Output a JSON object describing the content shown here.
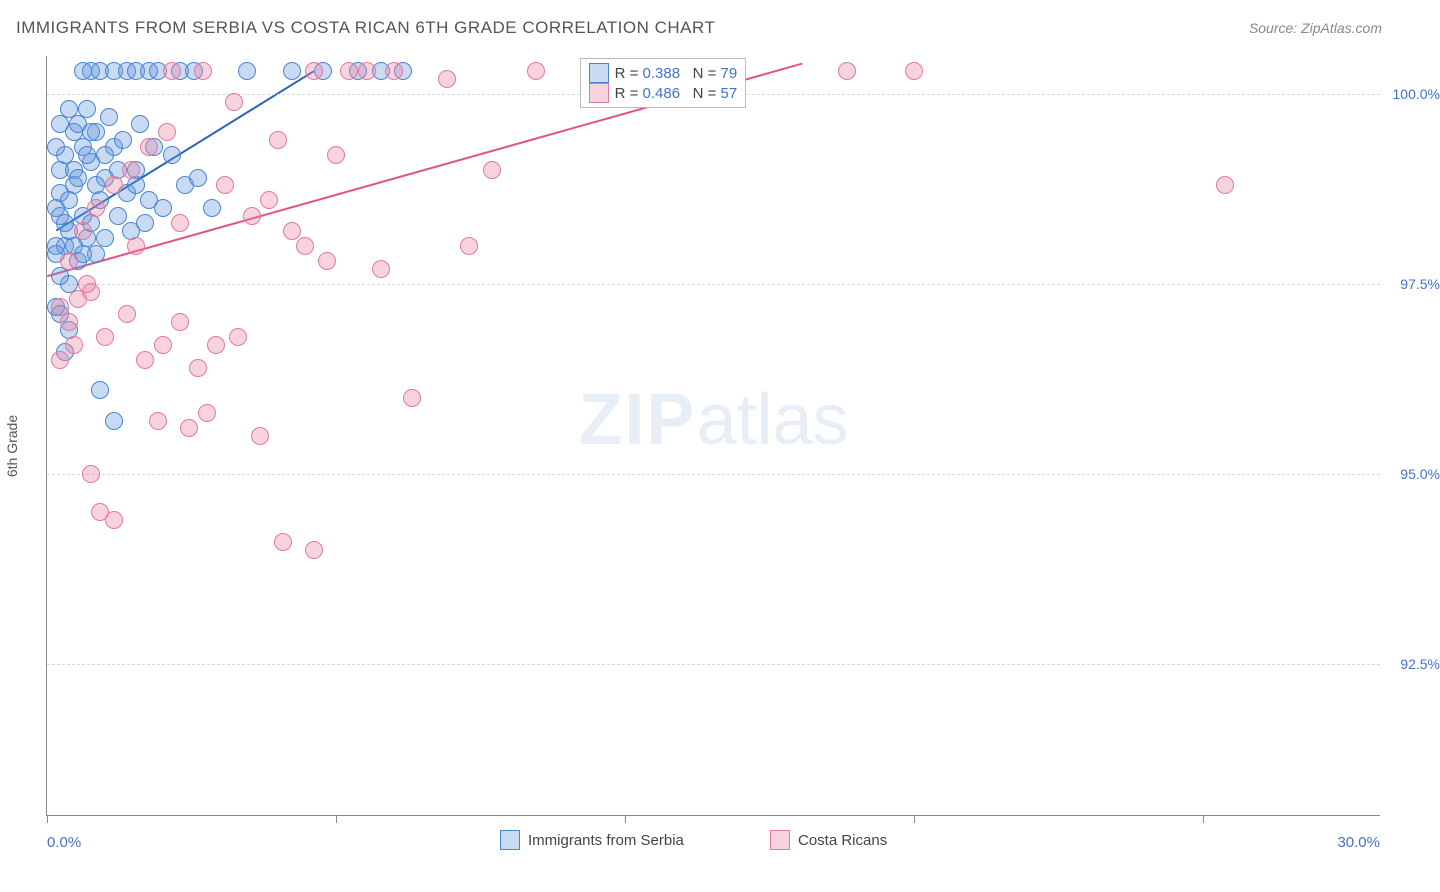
{
  "title": "IMMIGRANTS FROM SERBIA VS COSTA RICAN 6TH GRADE CORRELATION CHART",
  "source": "Source: ZipAtlas.com",
  "watermark_bold": "ZIP",
  "watermark_light": "atlas",
  "yaxis_label": "6th Grade",
  "xaxis_min_label": "0.0%",
  "xaxis_max_label": "30.0%",
  "chart": {
    "type": "scatter",
    "xlim": [
      0,
      30
    ],
    "ylim": [
      90.5,
      100.5
    ],
    "yticks": [
      92.5,
      95.0,
      97.5,
      100.0
    ],
    "ytick_labels": [
      "92.5%",
      "95.0%",
      "97.5%",
      "100.0%"
    ],
    "xticks": [
      0,
      6.5,
      13,
      19.5,
      26
    ],
    "background_color": "#ffffff",
    "grid_color": "#d8d8d8",
    "marker_radius": 9,
    "marker_opacity": 0.45,
    "series": [
      {
        "name": "Immigrants from Serbia",
        "color_fill": "rgba(100,150,220,0.35)",
        "color_stroke": "#4a86d0",
        "trend_color": "#2b64b5",
        "trend_width": 2,
        "R": "0.388",
        "N": "79",
        "trend": {
          "x1": 0.2,
          "y1": 98.2,
          "x2": 6.0,
          "y2": 100.3
        },
        "points": [
          [
            0.2,
            98.5
          ],
          [
            0.3,
            99.0
          ],
          [
            0.4,
            98.0
          ],
          [
            0.5,
            97.5
          ],
          [
            0.3,
            98.7
          ],
          [
            0.6,
            99.5
          ],
          [
            0.8,
            100.3
          ],
          [
            1.0,
            100.3
          ],
          [
            1.2,
            100.3
          ],
          [
            1.5,
            100.3
          ],
          [
            1.8,
            100.3
          ],
          [
            2.0,
            100.3
          ],
          [
            2.3,
            100.3
          ],
          [
            2.5,
            100.3
          ],
          [
            3.0,
            100.3
          ],
          [
            3.3,
            100.3
          ],
          [
            4.5,
            100.3
          ],
          [
            5.5,
            100.3
          ],
          [
            6.2,
            100.3
          ],
          [
            7.0,
            100.3
          ],
          [
            7.5,
            100.3
          ],
          [
            8.0,
            100.3
          ],
          [
            0.4,
            99.2
          ],
          [
            0.6,
            98.8
          ],
          [
            0.8,
            98.4
          ],
          [
            1.0,
            99.1
          ],
          [
            1.2,
            98.6
          ],
          [
            1.5,
            99.3
          ],
          [
            1.3,
            98.9
          ],
          [
            1.8,
            98.7
          ],
          [
            2.0,
            99.0
          ],
          [
            0.5,
            98.2
          ],
          [
            0.7,
            97.8
          ],
          [
            0.9,
            98.1
          ],
          [
            1.1,
            97.9
          ],
          [
            0.3,
            97.6
          ],
          [
            0.2,
            98.0
          ],
          [
            0.4,
            98.3
          ],
          [
            0.6,
            98.0
          ],
          [
            0.8,
            97.9
          ],
          [
            0.2,
            99.3
          ],
          [
            0.3,
            99.6
          ],
          [
            0.5,
            99.8
          ],
          [
            0.7,
            99.6
          ],
          [
            0.9,
            99.8
          ],
          [
            1.1,
            99.5
          ],
          [
            1.4,
            99.7
          ],
          [
            1.7,
            99.4
          ],
          [
            2.1,
            99.6
          ],
          [
            2.4,
            99.3
          ],
          [
            0.2,
            97.2
          ],
          [
            0.3,
            97.1
          ],
          [
            0.5,
            96.9
          ],
          [
            2.8,
            99.2
          ],
          [
            3.1,
            98.8
          ],
          [
            3.4,
            98.9
          ],
          [
            3.7,
            98.5
          ],
          [
            1.0,
            98.3
          ],
          [
            1.3,
            98.1
          ],
          [
            1.6,
            98.4
          ],
          [
            1.9,
            98.2
          ],
          [
            2.2,
            98.3
          ],
          [
            2.6,
            98.5
          ],
          [
            1.2,
            96.1
          ],
          [
            0.4,
            96.6
          ],
          [
            1.5,
            95.7
          ],
          [
            0.6,
            99.0
          ],
          [
            0.8,
            99.3
          ],
          [
            1.0,
            99.5
          ],
          [
            1.3,
            99.2
          ],
          [
            1.6,
            99.0
          ],
          [
            2.0,
            98.8
          ],
          [
            2.3,
            98.6
          ],
          [
            0.3,
            98.4
          ],
          [
            0.5,
            98.6
          ],
          [
            0.7,
            98.9
          ],
          [
            0.9,
            99.2
          ],
          [
            1.1,
            98.8
          ],
          [
            0.2,
            97.9
          ]
        ]
      },
      {
        "name": "Costa Ricans",
        "color_fill": "rgba(235,130,160,0.35)",
        "color_stroke": "#e17aa0",
        "trend_color": "#e25585",
        "trend_width": 2,
        "R": "0.486",
        "N": "57",
        "trend": {
          "x1": 0.0,
          "y1": 97.6,
          "x2": 17.0,
          "y2": 100.4
        },
        "points": [
          [
            0.3,
            97.2
          ],
          [
            0.5,
            97.0
          ],
          [
            0.7,
            97.3
          ],
          [
            1.0,
            97.4
          ],
          [
            1.3,
            96.8
          ],
          [
            1.8,
            97.1
          ],
          [
            2.2,
            96.5
          ],
          [
            2.6,
            96.7
          ],
          [
            3.0,
            97.0
          ],
          [
            3.4,
            96.4
          ],
          [
            2.8,
            100.3
          ],
          [
            3.5,
            100.3
          ],
          [
            4.2,
            99.9
          ],
          [
            5.0,
            98.6
          ],
          [
            5.2,
            99.4
          ],
          [
            5.5,
            98.2
          ],
          [
            6.0,
            100.3
          ],
          [
            6.5,
            99.2
          ],
          [
            6.8,
            100.3
          ],
          [
            7.2,
            100.3
          ],
          [
            7.8,
            100.3
          ],
          [
            4.0,
            98.8
          ],
          [
            4.6,
            98.4
          ],
          [
            5.8,
            98.0
          ],
          [
            6.3,
            97.8
          ],
          [
            7.5,
            97.7
          ],
          [
            8.2,
            96.0
          ],
          [
            9.5,
            98.0
          ],
          [
            3.8,
            96.7
          ],
          [
            4.3,
            96.8
          ],
          [
            4.8,
            95.5
          ],
          [
            5.3,
            94.1
          ],
          [
            6.0,
            94.0
          ],
          [
            1.2,
            94.5
          ],
          [
            1.5,
            94.4
          ],
          [
            1.0,
            95.0
          ],
          [
            2.5,
            95.7
          ],
          [
            3.2,
            95.6
          ],
          [
            3.6,
            95.8
          ],
          [
            0.5,
            97.8
          ],
          [
            0.8,
            98.2
          ],
          [
            1.1,
            98.5
          ],
          [
            1.5,
            98.8
          ],
          [
            1.9,
            99.0
          ],
          [
            2.3,
            99.3
          ],
          [
            2.7,
            99.5
          ],
          [
            9.0,
            100.2
          ],
          [
            10.0,
            99.0
          ],
          [
            11.0,
            100.3
          ],
          [
            18.0,
            100.3
          ],
          [
            19.5,
            100.3
          ],
          [
            26.5,
            98.8
          ],
          [
            0.3,
            96.5
          ],
          [
            0.6,
            96.7
          ],
          [
            0.9,
            97.5
          ],
          [
            2.0,
            98.0
          ],
          [
            3.0,
            98.3
          ]
        ]
      }
    ]
  },
  "legend_stats": {
    "R_label": "R =",
    "N_label": "N ="
  },
  "bottom_legend": [
    {
      "label": "Immigrants from Serbia"
    },
    {
      "label": "Costa Ricans"
    }
  ]
}
